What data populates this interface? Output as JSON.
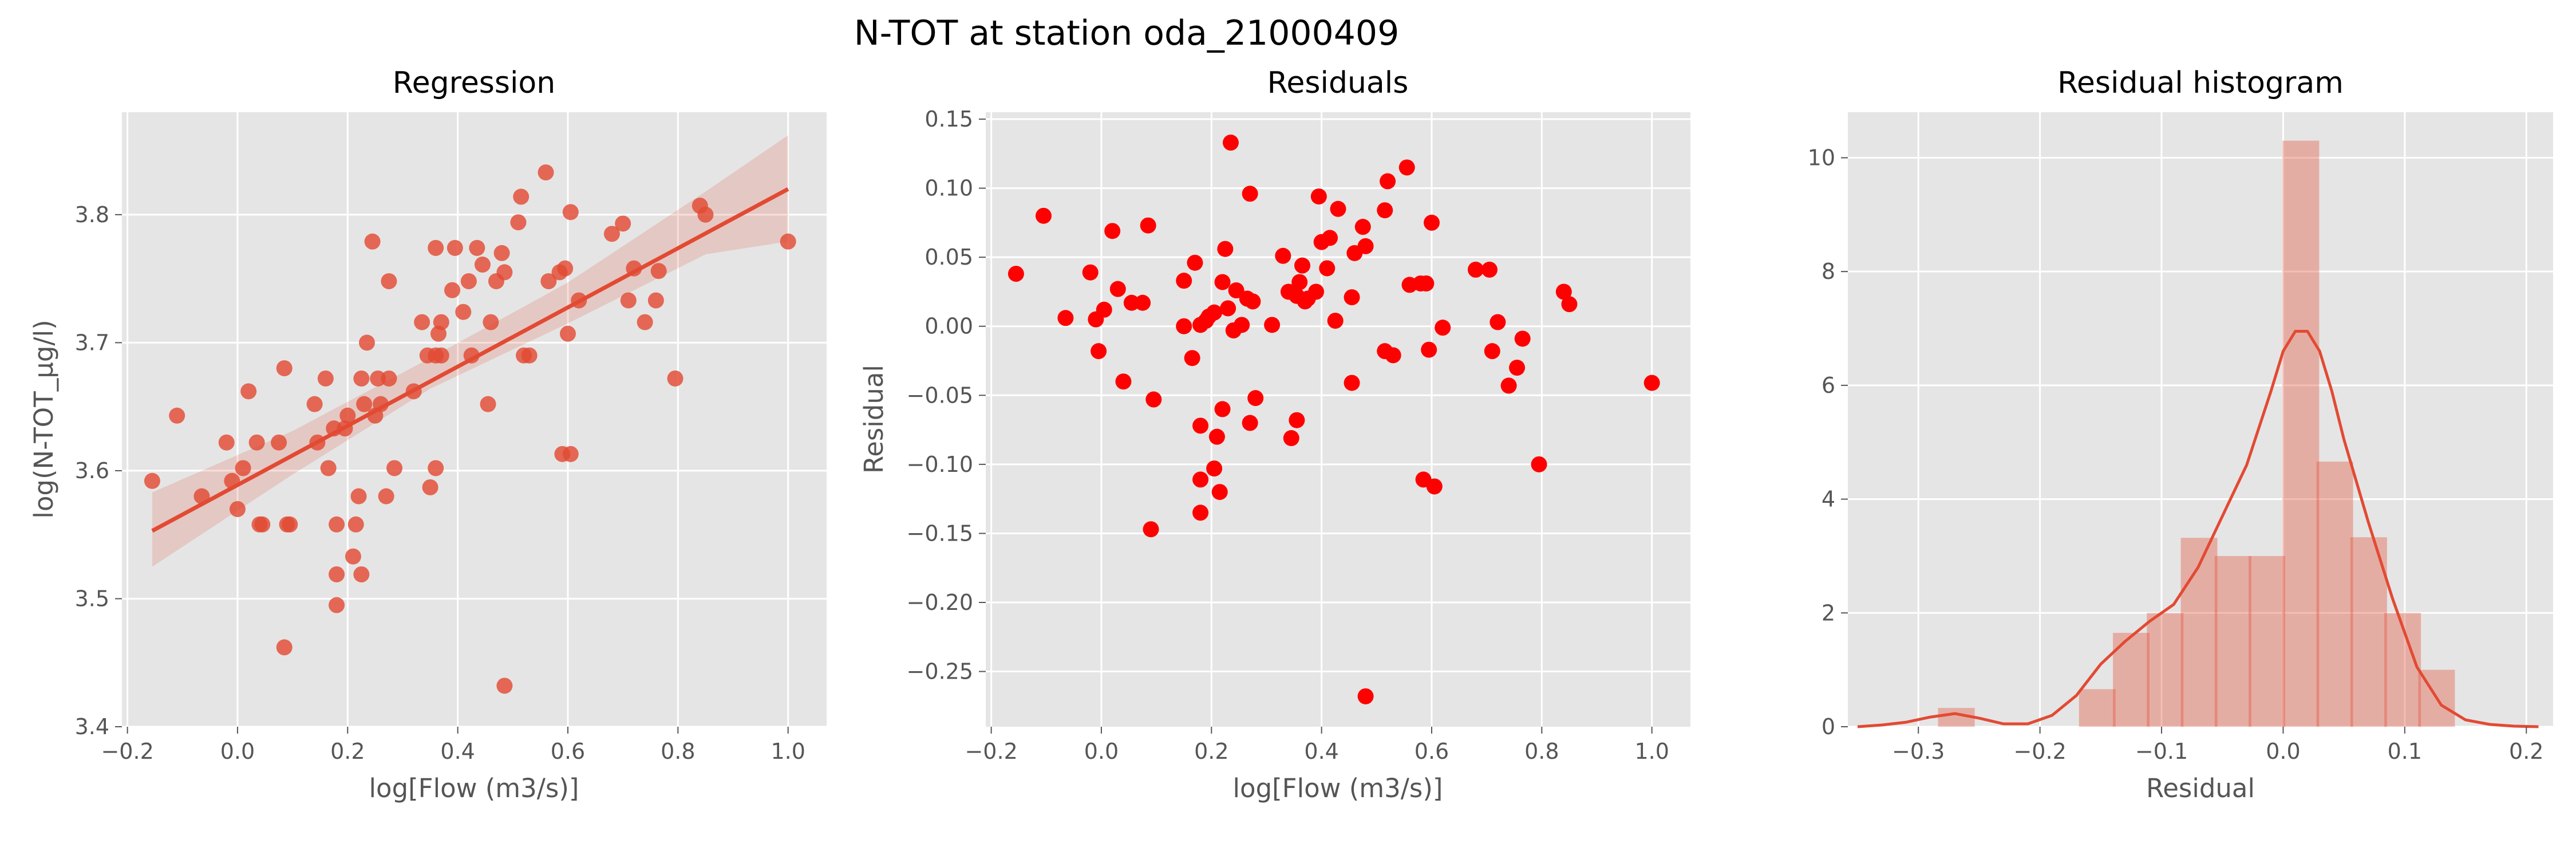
{
  "figure": {
    "suptitle": "N-TOT at station oda_21000409"
  },
  "colors": {
    "background": "#e5e5e5",
    "grid": "#ffffff",
    "accent": "#e24a33",
    "residual_points": "#ff0000",
    "tick_text": "#555555"
  },
  "chart_data": [
    {
      "id": "regression",
      "type": "scatter",
      "title": "Regression",
      "xlabel": "log[Flow (m3/s)]",
      "ylabel": "log(N-TOT_µg/l)",
      "xlim": [
        -0.21,
        1.07
      ],
      "ylim": [
        3.4,
        3.88
      ],
      "xticks": [
        -0.2,
        0.0,
        0.2,
        0.4,
        0.6,
        0.8,
        1.0
      ],
      "xtick_labels": [
        "−0.2",
        "0.0",
        "0.2",
        "0.4",
        "0.6",
        "0.8",
        "1.0"
      ],
      "yticks": [
        3.4,
        3.5,
        3.6,
        3.7,
        3.8
      ],
      "ytick_labels": [
        "3.4",
        "3.5",
        "3.6",
        "3.7",
        "3.8"
      ],
      "grid": true,
      "regression_line": {
        "x": [
          -0.155,
          1.0
        ],
        "y": [
          3.553,
          3.82
        ]
      },
      "confidence_band": {
        "x": [
          -0.155,
          0.1,
          0.35,
          0.6,
          0.85,
          1.0
        ],
        "upper": [
          3.583,
          3.631,
          3.688,
          3.747,
          3.818,
          3.862
        ],
        "lower": [
          3.525,
          3.597,
          3.664,
          3.715,
          3.769,
          3.779
        ]
      },
      "points": [
        [
          -0.155,
          3.592
        ],
        [
          -0.11,
          3.643
        ],
        [
          -0.065,
          3.58
        ],
        [
          -0.02,
          3.622
        ],
        [
          -0.01,
          3.592
        ],
        [
          0.0,
          3.57
        ],
        [
          0.01,
          3.602
        ],
        [
          0.02,
          3.662
        ],
        [
          0.035,
          3.622
        ],
        [
          0.04,
          3.558
        ],
        [
          0.045,
          3.558
        ],
        [
          0.075,
          3.622
        ],
        [
          0.085,
          3.68
        ],
        [
          0.09,
          3.558
        ],
        [
          0.095,
          3.558
        ],
        [
          0.085,
          3.462
        ],
        [
          0.14,
          3.652
        ],
        [
          0.145,
          3.622
        ],
        [
          0.16,
          3.672
        ],
        [
          0.165,
          3.602
        ],
        [
          0.175,
          3.633
        ],
        [
          0.18,
          3.558
        ],
        [
          0.18,
          3.519
        ],
        [
          0.18,
          3.495
        ],
        [
          0.195,
          3.633
        ],
        [
          0.2,
          3.643
        ],
        [
          0.21,
          3.533
        ],
        [
          0.215,
          3.558
        ],
        [
          0.22,
          3.58
        ],
        [
          0.225,
          3.519
        ],
        [
          0.225,
          3.672
        ],
        [
          0.23,
          3.652
        ],
        [
          0.235,
          3.7
        ],
        [
          0.245,
          3.779
        ],
        [
          0.25,
          3.643
        ],
        [
          0.255,
          3.672
        ],
        [
          0.26,
          3.652
        ],
        [
          0.27,
          3.58
        ],
        [
          0.275,
          3.748
        ],
        [
          0.275,
          3.672
        ],
        [
          0.285,
          3.602
        ],
        [
          0.32,
          3.662
        ],
        [
          0.335,
          3.716
        ],
        [
          0.345,
          3.69
        ],
        [
          0.35,
          3.587
        ],
        [
          0.36,
          3.602
        ],
        [
          0.36,
          3.69
        ],
        [
          0.36,
          3.774
        ],
        [
          0.365,
          3.707
        ],
        [
          0.37,
          3.716
        ],
        [
          0.37,
          3.69
        ],
        [
          0.39,
          3.741
        ],
        [
          0.395,
          3.774
        ],
        [
          0.41,
          3.724
        ],
        [
          0.42,
          3.748
        ],
        [
          0.425,
          3.69
        ],
        [
          0.435,
          3.774
        ],
        [
          0.445,
          3.761
        ],
        [
          0.455,
          3.652
        ],
        [
          0.46,
          3.716
        ],
        [
          0.47,
          3.748
        ],
        [
          0.48,
          3.77
        ],
        [
          0.485,
          3.755
        ],
        [
          0.485,
          3.432
        ],
        [
          0.51,
          3.794
        ],
        [
          0.515,
          3.814
        ],
        [
          0.52,
          3.69
        ],
        [
          0.53,
          3.69
        ],
        [
          0.56,
          3.833
        ],
        [
          0.565,
          3.748
        ],
        [
          0.585,
          3.755
        ],
        [
          0.59,
          3.613
        ],
        [
          0.595,
          3.758
        ],
        [
          0.6,
          3.707
        ],
        [
          0.605,
          3.802
        ],
        [
          0.605,
          3.613
        ],
        [
          0.62,
          3.733
        ],
        [
          0.68,
          3.785
        ],
        [
          0.7,
          3.793
        ],
        [
          0.71,
          3.733
        ],
        [
          0.72,
          3.758
        ],
        [
          0.74,
          3.716
        ],
        [
          0.76,
          3.733
        ],
        [
          0.765,
          3.756
        ],
        [
          0.795,
          3.672
        ],
        [
          0.84,
          3.807
        ],
        [
          0.85,
          3.8
        ],
        [
          1.0,
          3.779
        ]
      ]
    },
    {
      "id": "residuals",
      "type": "scatter",
      "title": "Residuals",
      "xlabel": "log[Flow (m3/s)]",
      "ylabel": "Residual",
      "xlim": [
        -0.21,
        1.07
      ],
      "ylim": [
        -0.29,
        0.155
      ],
      "xticks": [
        -0.2,
        0.0,
        0.2,
        0.4,
        0.6,
        0.8,
        1.0
      ],
      "xtick_labels": [
        "−0.2",
        "0.0",
        "0.2",
        "0.4",
        "0.6",
        "0.8",
        "1.0"
      ],
      "yticks": [
        -0.25,
        -0.2,
        -0.15,
        -0.1,
        -0.05,
        0.0,
        0.05,
        0.1,
        0.15
      ],
      "ytick_labels": [
        "−0.25",
        "−0.20",
        "−0.15",
        "−0.10",
        "−0.05",
        "0.00",
        "0.05",
        "0.10",
        "0.15"
      ],
      "grid": true,
      "points": [
        [
          -0.155,
          0.038
        ],
        [
          -0.105,
          0.08
        ],
        [
          -0.065,
          0.006
        ],
        [
          -0.02,
          0.039
        ],
        [
          -0.01,
          0.005
        ],
        [
          -0.005,
          -0.018
        ],
        [
          0.005,
          0.012
        ],
        [
          0.02,
          0.069
        ],
        [
          0.03,
          0.027
        ],
        [
          0.04,
          -0.04
        ],
        [
          0.055,
          0.017
        ],
        [
          0.075,
          0.017
        ],
        [
          0.085,
          0.073
        ],
        [
          0.09,
          -0.147
        ],
        [
          0.095,
          -0.053
        ],
        [
          0.15,
          0.0
        ],
        [
          0.15,
          0.033
        ],
        [
          0.165,
          -0.023
        ],
        [
          0.17,
          0.046
        ],
        [
          0.18,
          0.001
        ],
        [
          0.18,
          -0.072
        ],
        [
          0.18,
          -0.111
        ],
        [
          0.18,
          -0.135
        ],
        [
          0.19,
          0.004
        ],
        [
          0.195,
          0.007
        ],
        [
          0.205,
          0.01
        ],
        [
          0.205,
          -0.103
        ],
        [
          0.21,
          -0.08
        ],
        [
          0.215,
          -0.12
        ],
        [
          0.22,
          -0.06
        ],
        [
          0.22,
          0.032
        ],
        [
          0.225,
          0.056
        ],
        [
          0.23,
          0.013
        ],
        [
          0.235,
          0.133
        ],
        [
          0.24,
          -0.003
        ],
        [
          0.245,
          0.026
        ],
        [
          0.255,
          0.001
        ],
        [
          0.265,
          0.02
        ],
        [
          0.27,
          -0.07
        ],
        [
          0.27,
          0.096
        ],
        [
          0.275,
          0.018
        ],
        [
          0.28,
          -0.052
        ],
        [
          0.31,
          0.001
        ],
        [
          0.33,
          0.051
        ],
        [
          0.34,
          0.025
        ],
        [
          0.345,
          -0.081
        ],
        [
          0.355,
          0.022
        ],
        [
          0.355,
          -0.068
        ],
        [
          0.36,
          0.032
        ],
        [
          0.365,
          0.044
        ],
        [
          0.37,
          0.018
        ],
        [
          0.375,
          0.02
        ],
        [
          0.39,
          0.025
        ],
        [
          0.395,
          0.094
        ],
        [
          0.4,
          0.061
        ],
        [
          0.41,
          0.042
        ],
        [
          0.415,
          0.064
        ],
        [
          0.425,
          0.004
        ],
        [
          0.43,
          0.085
        ],
        [
          0.455,
          0.021
        ],
        [
          0.455,
          -0.041
        ],
        [
          0.46,
          0.053
        ],
        [
          0.475,
          0.072
        ],
        [
          0.48,
          0.058
        ],
        [
          0.48,
          -0.268
        ],
        [
          0.515,
          0.084
        ],
        [
          0.515,
          -0.018
        ],
        [
          0.52,
          0.105
        ],
        [
          0.53,
          -0.021
        ],
        [
          0.555,
          0.115
        ],
        [
          0.56,
          0.03
        ],
        [
          0.58,
          0.031
        ],
        [
          0.585,
          -0.111
        ],
        [
          0.59,
          0.031
        ],
        [
          0.595,
          -0.017
        ],
        [
          0.6,
          0.075
        ],
        [
          0.605,
          -0.116
        ],
        [
          0.62,
          -0.001
        ],
        [
          0.68,
          0.041
        ],
        [
          0.705,
          0.041
        ],
        [
          0.71,
          -0.018
        ],
        [
          0.72,
          0.003
        ],
        [
          0.74,
          -0.043
        ],
        [
          0.755,
          -0.03
        ],
        [
          0.765,
          -0.009
        ],
        [
          0.795,
          -0.1
        ],
        [
          0.84,
          0.025
        ],
        [
          0.85,
          0.016
        ],
        [
          1.0,
          -0.041
        ]
      ]
    },
    {
      "id": "histogram",
      "type": "bar",
      "title": "Residual histogram",
      "xlabel": "Residual",
      "ylabel": "",
      "xlim": [
        -0.358,
        0.222
      ],
      "ylim": [
        0,
        10.8
      ],
      "xticks": [
        -0.3,
        -0.2,
        -0.1,
        0.0,
        0.1,
        0.2
      ],
      "xtick_labels": [
        "−0.3",
        "−0.2",
        "−0.1",
        "0.0",
        "0.1",
        "0.2"
      ],
      "yticks": [
        0,
        2,
        4,
        6,
        8,
        10
      ],
      "ytick_labels": [
        "0",
        "2",
        "4",
        "6",
        "8",
        "10"
      ],
      "grid": true,
      "bins": [
        [
          -0.269,
          -0.2685,
          0.33
        ],
        [
          -0.1668,
          -0.1389,
          0.66
        ],
        [
          -0.1389,
          -0.111,
          1.65
        ],
        [
          -0.111,
          -0.0831,
          2.0
        ],
        [
          -0.0831,
          -0.0552,
          3.32
        ],
        [
          -0.0552,
          -0.0273,
          3.0
        ],
        [
          -0.0273,
          0.0006,
          3.0
        ],
        [
          0.0006,
          0.0285,
          10.3
        ],
        [
          0.0285,
          0.0564,
          4.66
        ],
        [
          0.0564,
          0.0843,
          3.33
        ],
        [
          0.0843,
          0.1122,
          2.0
        ],
        [
          0.1122,
          0.1401,
          1.0
        ]
      ],
      "kde": {
        "x": [
          -0.35,
          -0.33,
          -0.31,
          -0.29,
          -0.27,
          -0.25,
          -0.23,
          -0.21,
          -0.19,
          -0.17,
          -0.15,
          -0.13,
          -0.11,
          -0.09,
          -0.07,
          -0.05,
          -0.03,
          -0.01,
          0.0,
          0.01,
          0.02,
          0.03,
          0.04,
          0.05,
          0.07,
          0.09,
          0.11,
          0.13,
          0.15,
          0.17,
          0.19,
          0.21
        ],
        "y": [
          0.0,
          0.03,
          0.08,
          0.17,
          0.23,
          0.15,
          0.05,
          0.05,
          0.2,
          0.55,
          1.1,
          1.5,
          1.85,
          2.15,
          2.8,
          3.7,
          4.6,
          5.9,
          6.6,
          6.95,
          6.95,
          6.6,
          5.9,
          5.05,
          3.6,
          2.25,
          1.05,
          0.38,
          0.12,
          0.04,
          0.01,
          0.0
        ]
      }
    }
  ]
}
